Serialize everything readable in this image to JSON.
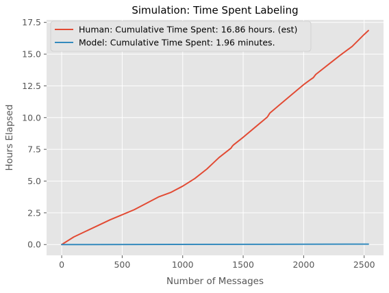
{
  "chart_data": {
    "type": "line",
    "title": "Simulation: Time Spent Labeling",
    "xlabel": "Number of Messages",
    "ylabel": "Hours Elapsed",
    "xlim": [
      -125,
      2660
    ],
    "ylim": [
      -0.85,
      17.7
    ],
    "xticks": [
      0,
      500,
      1000,
      1500,
      2000,
      2500
    ],
    "yticks": [
      0.0,
      2.5,
      5.0,
      7.5,
      10.0,
      12.5,
      15.0,
      17.5
    ],
    "xtick_labels": [
      "0",
      "500",
      "1000",
      "1500",
      "2000",
      "2500"
    ],
    "ytick_labels": [
      "0.0",
      "2.5",
      "5.0",
      "7.5",
      "10.0",
      "12.5",
      "15.0",
      "17.5"
    ],
    "grid": true,
    "legend_position": "top-left",
    "series": [
      {
        "name": "Human: Cumulative Time Spent: 16.86 hours. (est)",
        "color": "#e24a33",
        "x": [
          0,
          100,
          200,
          300,
          400,
          500,
          600,
          700,
          800,
          900,
          1000,
          1100,
          1200,
          1250,
          1300,
          1400,
          1410,
          1420,
          1500,
          1600,
          1700,
          1720,
          1800,
          1900,
          2000,
          2050,
          2080,
          2100,
          2200,
          2300,
          2400,
          2500,
          2535
        ],
        "y": [
          0.0,
          0.6,
          1.05,
          1.5,
          1.95,
          2.35,
          2.75,
          3.25,
          3.75,
          4.1,
          4.6,
          5.2,
          5.95,
          6.4,
          6.85,
          7.6,
          7.75,
          7.85,
          8.45,
          9.25,
          10.05,
          10.35,
          11.0,
          11.8,
          12.6,
          12.95,
          13.15,
          13.4,
          14.15,
          14.9,
          15.6,
          16.55,
          16.86
        ]
      },
      {
        "name": "Model: Cumulative Time Spent: 1.96 minutes.",
        "color": "#348abd",
        "x": [
          0,
          2535
        ],
        "y": [
          0.0,
          0.033
        ]
      }
    ]
  }
}
